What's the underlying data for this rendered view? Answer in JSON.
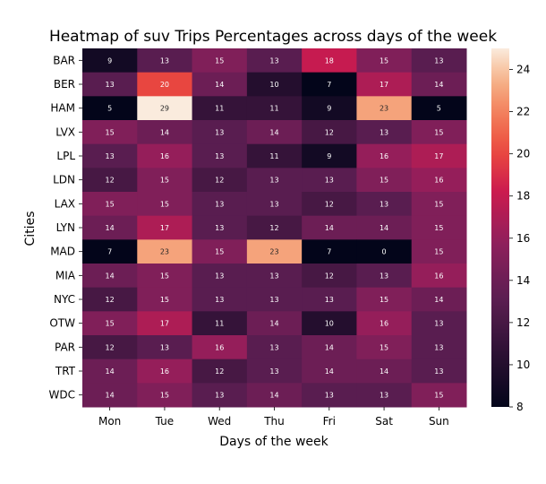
{
  "chart_data": {
    "type": "heatmap",
    "title": "Heatmap of suv Trips Percentages across days of the week",
    "xlabel": "Days of the week",
    "ylabel": "Cities",
    "x_categories": [
      "Mon",
      "Tue",
      "Wed",
      "Thu",
      "Fri",
      "Sat",
      "Sun"
    ],
    "y_categories": [
      "BAR",
      "BER",
      "HAM",
      "LVX",
      "LPL",
      "LDN",
      "LAX",
      "LYN",
      "MAD",
      "MIA",
      "NYC",
      "OTW",
      "PAR",
      "TRT",
      "WDC"
    ],
    "values": [
      [
        9,
        13,
        15,
        13,
        18,
        15,
        13
      ],
      [
        13,
        20,
        14,
        10,
        7,
        17,
        14
      ],
      [
        5,
        29,
        11,
        11,
        9,
        23,
        5
      ],
      [
        15,
        14,
        13,
        14,
        12,
        13,
        15
      ],
      [
        13,
        16,
        13,
        11,
        9,
        16,
        17
      ],
      [
        12,
        15,
        12,
        13,
        13,
        15,
        16
      ],
      [
        15,
        15,
        13,
        13,
        12,
        13,
        15
      ],
      [
        14,
        17,
        13,
        12,
        14,
        14,
        15
      ],
      [
        7,
        23,
        15,
        23,
        7,
        0,
        15
      ],
      [
        14,
        15,
        13,
        13,
        12,
        13,
        16
      ],
      [
        12,
        15,
        13,
        13,
        13,
        15,
        14
      ],
      [
        15,
        17,
        11,
        14,
        10,
        16,
        13
      ],
      [
        12,
        13,
        16,
        13,
        14,
        15,
        13
      ],
      [
        14,
        16,
        12,
        13,
        14,
        14,
        13
      ],
      [
        14,
        15,
        13,
        14,
        13,
        13,
        15
      ]
    ],
    "colorbar": {
      "min": 8,
      "max": 25,
      "ticks": [
        8,
        10,
        12,
        14,
        16,
        18,
        20,
        22,
        24
      ]
    },
    "colormap": "rocket"
  }
}
